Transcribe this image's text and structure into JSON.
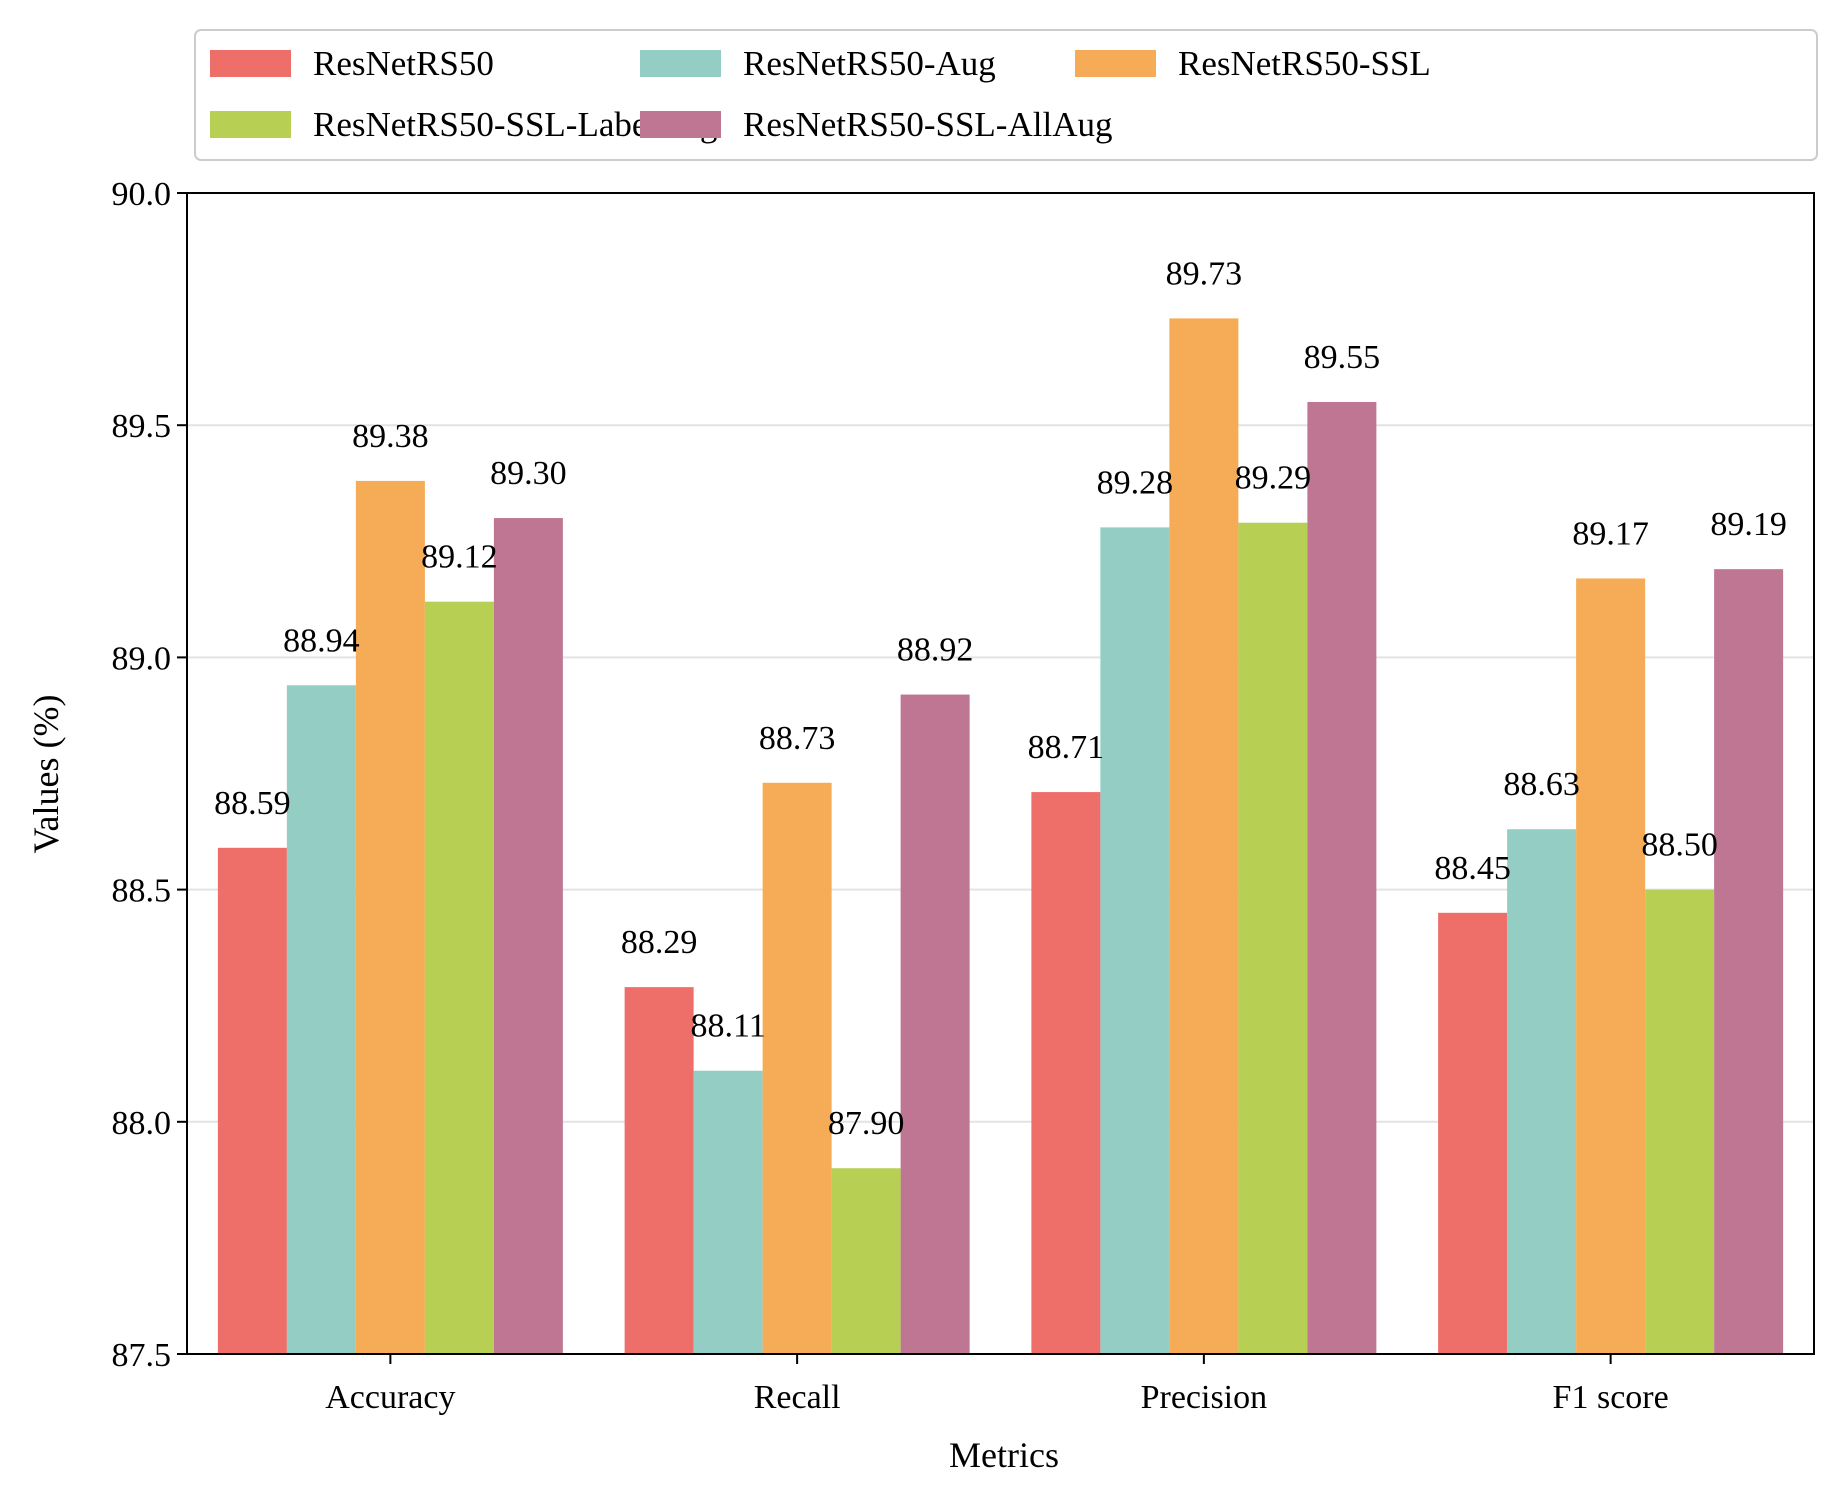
{
  "chart_data": {
    "type": "bar",
    "title": "",
    "xlabel": "Metrics",
    "ylabel": "Values (%)",
    "categories": [
      "Accuracy",
      "Recall",
      "Precision",
      "F1 score"
    ],
    "series": [
      {
        "name": "ResNetRS50",
        "color": "#ee6e69",
        "values": [
          88.59,
          88.29,
          88.71,
          88.45
        ],
        "labels": [
          "88.59",
          "88.29",
          "88.71",
          "88.45"
        ]
      },
      {
        "name": "ResNetRS50-Aug",
        "color": "#93cdc3",
        "values": [
          88.94,
          88.11,
          89.28,
          88.63
        ],
        "labels": [
          "88.94",
          "88.11",
          "89.28",
          "88.63"
        ]
      },
      {
        "name": "ResNetRS50-SSL",
        "color": "#f6ab56",
        "values": [
          89.38,
          88.73,
          89.73,
          89.17
        ],
        "labels": [
          "89.38",
          "88.73",
          "89.73",
          "89.17"
        ]
      },
      {
        "name": "ResNetRS50-SSL-LabelAug",
        "color": "#b7cf52",
        "values": [
          89.12,
          87.9,
          89.29,
          88.5
        ],
        "labels": [
          "89.12",
          "87.90",
          "89.29",
          "88.50"
        ]
      },
      {
        "name": "ResNetRS50-SSL-AllAug",
        "color": "#be7692",
        "values": [
          89.3,
          88.92,
          89.55,
          89.19
        ],
        "labels": [
          "89.30",
          "88.92",
          "89.55",
          "89.19"
        ]
      }
    ],
    "ylim": [
      87.5,
      90.0
    ],
    "yticks": [
      "87.5",
      "88.0",
      "88.5",
      "89.0",
      "89.5",
      "90.0"
    ],
    "grid": "horizontal",
    "legend_position": "top"
  }
}
